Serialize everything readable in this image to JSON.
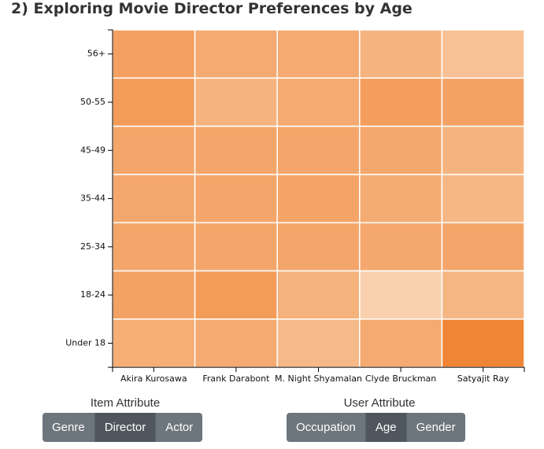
{
  "title": "2) Exploring Movie Director Preferences by Age",
  "chart_data": {
    "type": "heatmap",
    "x": [
      "Akira Kurosawa",
      "Frank Darabont",
      "M. Night Shyamalan",
      "Clyde Bruckman",
      "Satyajit Ray"
    ],
    "y": [
      "56+",
      "50-55",
      "45-49",
      "35-44",
      "25-34",
      "18-24",
      "Under 18"
    ],
    "values": [
      [
        0.72,
        0.62,
        0.62,
        0.52,
        0.38
      ],
      [
        0.76,
        0.52,
        0.62,
        0.74,
        0.7
      ],
      [
        0.66,
        0.66,
        0.66,
        0.64,
        0.52
      ],
      [
        0.64,
        0.66,
        0.68,
        0.6,
        0.48
      ],
      [
        0.66,
        0.66,
        0.66,
        0.64,
        0.66
      ],
      [
        0.7,
        0.76,
        0.54,
        0.22,
        0.5
      ],
      [
        0.58,
        0.62,
        0.46,
        0.62,
        1.0
      ]
    ],
    "color_low": "#fbe6d0",
    "color_high": "#f08535",
    "grid": false
  },
  "controls": {
    "item_attribute": {
      "label": "Item Attribute",
      "options": [
        "Genre",
        "Director",
        "Actor"
      ],
      "selected": "Director"
    },
    "user_attribute": {
      "label": "User Attribute",
      "options": [
        "Occupation",
        "Age",
        "Gender"
      ],
      "selected": "Age"
    }
  }
}
